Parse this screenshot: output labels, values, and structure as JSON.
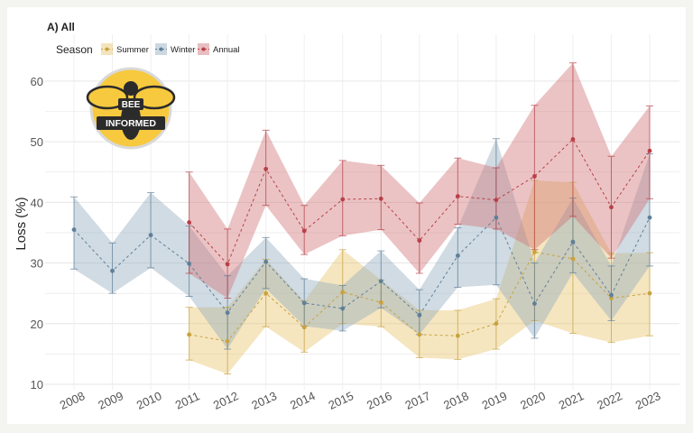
{
  "colors": {
    "summer": "#e7c46a",
    "winter": "#8fa9bd",
    "annual": "#cf6f73",
    "summer_point": "#c9a23e",
    "winter_point": "#5f7f99",
    "annual_point": "#b84048",
    "grid": "#e6e6e6",
    "logo_fill": "#f7c93e",
    "logo_dark": "#2b2b2b"
  },
  "logo": {
    "top_text": "BEE",
    "bottom_text": "INFORMED",
    "icon": "bee-icon"
  },
  "chart_data": {
    "type": "line",
    "panel_title": "A) All",
    "ylabel": "Loss (%)",
    "xlabel": "",
    "ylim": [
      10,
      64
    ],
    "yticks": [
      10,
      20,
      30,
      40,
      50,
      60
    ],
    "grid": true,
    "legend": {
      "title": "Season",
      "position": "top-left"
    },
    "categories": [
      "2008",
      "2009",
      "2010",
      "2011",
      "2012",
      "2013",
      "2014",
      "2015",
      "2016",
      "2017",
      "2018",
      "2019",
      "2020",
      "2021",
      "2022",
      "2023"
    ],
    "series": [
      {
        "name": "Summer",
        "key": "summer",
        "values": [
          null,
          null,
          null,
          18.2,
          17.1,
          25.0,
          19.4,
          25.2,
          23.5,
          18.2,
          18.0,
          20.0,
          31.8,
          30.7,
          24.2,
          25.0
        ],
        "lower": [
          null,
          null,
          null,
          14.0,
          11.7,
          19.5,
          15.3,
          20.0,
          19.5,
          14.4,
          14.1,
          15.8,
          20.5,
          18.4,
          16.9,
          18.0
        ],
        "upper": [
          null,
          null,
          null,
          22.7,
          22.7,
          30.6,
          23.7,
          32.2,
          27.2,
          22.2,
          22.2,
          24.1,
          43.6,
          43.3,
          31.6,
          31.7
        ]
      },
      {
        "name": "Winter",
        "key": "winter",
        "values": [
          35.5,
          28.7,
          34.6,
          29.9,
          21.8,
          30.2,
          23.4,
          22.5,
          27.0,
          21.4,
          31.2,
          37.5,
          23.3,
          33.5,
          24.7,
          37.5
        ],
        "lower": [
          29.0,
          25.0,
          29.2,
          24.5,
          15.8,
          25.8,
          19.6,
          18.8,
          22.6,
          18.2,
          26.0,
          26.4,
          17.6,
          28.4,
          20.5,
          29.5
        ],
        "upper": [
          40.9,
          33.3,
          41.6,
          36.1,
          27.9,
          34.2,
          27.4,
          26.3,
          32.0,
          25.6,
          35.8,
          50.5,
          30.0,
          40.7,
          29.5,
          48.0
        ]
      },
      {
        "name": "Annual",
        "key": "annual",
        "values": [
          null,
          null,
          null,
          36.7,
          29.8,
          45.5,
          35.3,
          40.5,
          40.6,
          33.7,
          41.0,
          40.4,
          44.3,
          50.4,
          39.2,
          48.5
        ],
        "lower": [
          null,
          null,
          null,
          28.3,
          24.2,
          39.5,
          31.4,
          34.5,
          35.5,
          28.3,
          36.4,
          35.6,
          32.2,
          37.7,
          30.8,
          40.6
        ],
        "upper": [
          null,
          null,
          null,
          45.0,
          35.6,
          51.9,
          39.5,
          46.9,
          46.1,
          39.9,
          47.3,
          45.7,
          56.0,
          63.0,
          47.6,
          55.9
        ]
      }
    ]
  }
}
